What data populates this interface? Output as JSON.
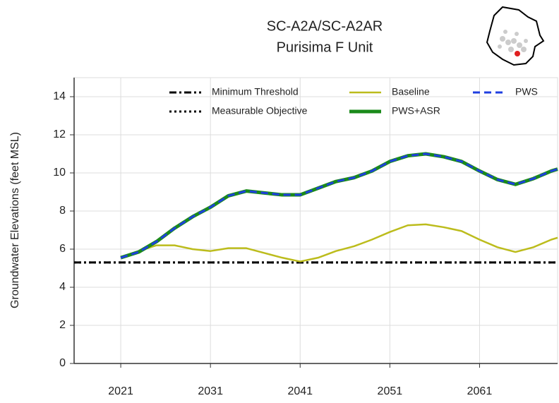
{
  "chart_data": {
    "type": "line",
    "title": "SC-A2A/SC-A2AR",
    "subtitle": "Purisima F Unit",
    "y_label": "Groundwater Elevations (feet MSL)",
    "xlim": [
      2015.8,
      2069.7
    ],
    "ylim": [
      0,
      15
    ],
    "xticks": [
      2021,
      2031,
      2041,
      2051,
      2061
    ],
    "yticks": [
      0,
      2,
      4,
      6,
      8,
      10,
      12,
      14
    ],
    "grid": true,
    "legend": "upper center",
    "series": [
      {
        "name": "Minimum Threshold",
        "color": "#000000",
        "style": "dashdot",
        "x": [
          2015.8,
          2069.7
        ],
        "values": [
          5.3,
          5.3
        ]
      },
      {
        "name": "Measurable Objective",
        "color": "#000000",
        "style": "dotted",
        "x": [
          2015.8,
          2069.7
        ],
        "values": [
          5.3,
          5.3
        ]
      },
      {
        "name": "Baseline",
        "color": "#bcbc1c",
        "style": "solid",
        "x": [
          2021,
          2023,
          2025,
          2027,
          2029,
          2031,
          2033,
          2035,
          2037,
          2039,
          2041,
          2043,
          2045,
          2047,
          2049,
          2051,
          2053,
          2055,
          2057,
          2059,
          2061,
          2063,
          2065,
          2067,
          2069,
          2069.7
        ],
        "values": [
          5.55,
          5.9,
          6.2,
          6.2,
          6.0,
          5.9,
          6.05,
          6.05,
          5.8,
          5.55,
          5.35,
          5.55,
          5.9,
          6.15,
          6.5,
          6.9,
          7.25,
          7.3,
          7.15,
          6.95,
          6.5,
          6.1,
          5.85,
          6.1,
          6.5,
          6.6
        ]
      },
      {
        "name": "PWS+ASR",
        "color": "#1a8a1a",
        "style": "solid",
        "x": [
          2021,
          2023,
          2025,
          2027,
          2029,
          2031,
          2033,
          2035,
          2037,
          2039,
          2041,
          2043,
          2045,
          2047,
          2049,
          2051,
          2053,
          2055,
          2057,
          2059,
          2061,
          2063,
          2065,
          2067,
          2069,
          2069.7
        ],
        "values": [
          5.55,
          5.85,
          6.4,
          7.1,
          7.7,
          8.2,
          8.8,
          9.05,
          8.95,
          8.85,
          8.85,
          9.2,
          9.55,
          9.75,
          10.1,
          10.6,
          10.9,
          11.0,
          10.85,
          10.6,
          10.1,
          9.65,
          9.4,
          9.7,
          10.1,
          10.2
        ]
      },
      {
        "name": "PWS",
        "color": "#1f3fe0",
        "style": "dashed",
        "x": [
          2021,
          2023,
          2025,
          2027,
          2029,
          2031,
          2033,
          2035,
          2037,
          2039,
          2041,
          2043,
          2045,
          2047,
          2049,
          2051,
          2053,
          2055,
          2057,
          2059,
          2061,
          2063,
          2065,
          2067,
          2069,
          2069.7
        ],
        "values": [
          5.55,
          5.85,
          6.4,
          7.1,
          7.7,
          8.2,
          8.8,
          9.05,
          8.95,
          8.85,
          8.85,
          9.2,
          9.55,
          9.75,
          10.1,
          10.6,
          10.9,
          11.0,
          10.85,
          10.6,
          10.1,
          9.65,
          9.4,
          9.7,
          10.1,
          10.2
        ]
      }
    ]
  }
}
